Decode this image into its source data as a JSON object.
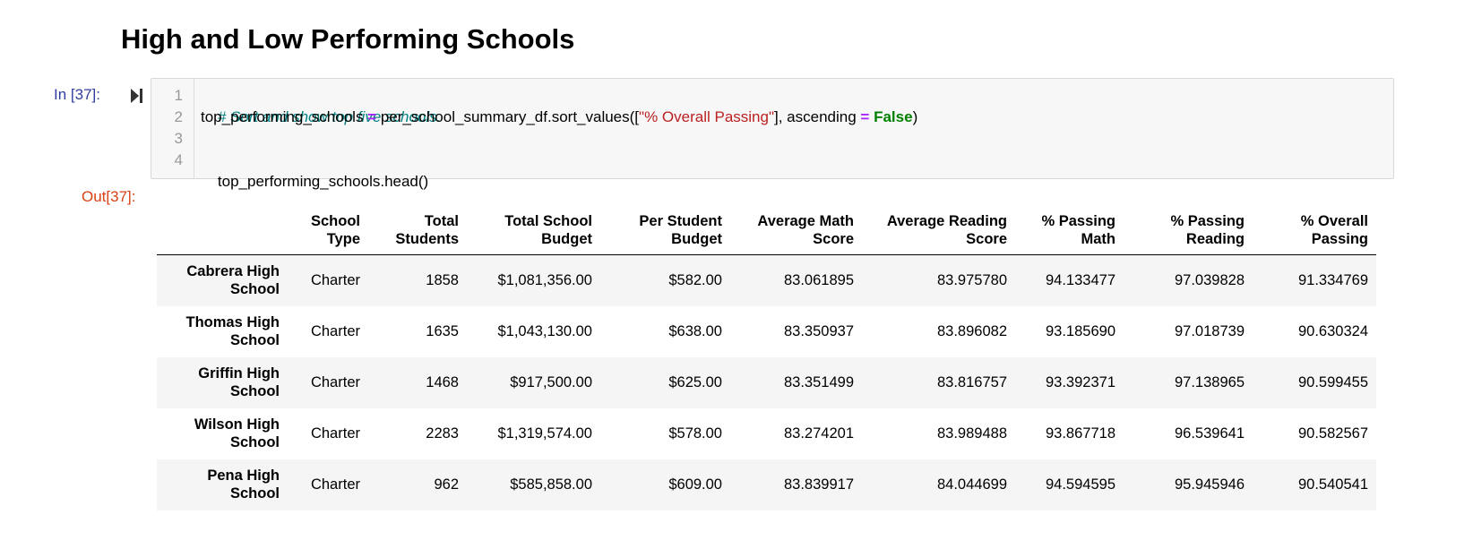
{
  "section_heading": "High and Low Performing Schools",
  "input_cell": {
    "prompt": "In [37]:",
    "line_numbers": [
      "1",
      "2",
      "3",
      "4"
    ],
    "code": {
      "comment": "# Sort and show top five schools.",
      "line2": {
        "var": "top_performing_schools ",
        "op": "=",
        "call_start": " per_school_summary_df.sort_values([",
        "string": "\"% Overall Passing\"",
        "mid": "], ascending ",
        "op2": "=",
        "space": " ",
        "keyword": "False",
        "end": ")"
      },
      "line4": "top_performing_schools.head()"
    }
  },
  "output_cell": {
    "prompt": "Out[37]:",
    "table": {
      "columns": [
        [
          "School",
          "Type"
        ],
        [
          "Total",
          "Students"
        ],
        [
          "Total School",
          "Budget"
        ],
        [
          "Per Student",
          "Budget"
        ],
        [
          "Average Math",
          "Score"
        ],
        [
          "Average Reading",
          "Score"
        ],
        [
          "% Passing",
          "Math"
        ],
        [
          "% Passing",
          "Reading"
        ],
        [
          "% Overall",
          "Passing"
        ]
      ],
      "rows": [
        {
          "index": [
            "Cabrera High",
            "School"
          ],
          "cells": [
            "Charter",
            "1858",
            "$1,081,356.00",
            "$582.00",
            "83.061895",
            "83.975780",
            "94.133477",
            "97.039828",
            "91.334769"
          ]
        },
        {
          "index": [
            "Thomas High",
            "School"
          ],
          "cells": [
            "Charter",
            "1635",
            "$1,043,130.00",
            "$638.00",
            "83.350937",
            "83.896082",
            "93.185690",
            "97.018739",
            "90.630324"
          ]
        },
        {
          "index": [
            "Griffin High",
            "School"
          ],
          "cells": [
            "Charter",
            "1468",
            "$917,500.00",
            "$625.00",
            "83.351499",
            "83.816757",
            "93.392371",
            "97.138965",
            "90.599455"
          ]
        },
        {
          "index": [
            "Wilson High",
            "School"
          ],
          "cells": [
            "Charter",
            "2283",
            "$1,319,574.00",
            "$578.00",
            "83.274201",
            "83.989488",
            "93.867718",
            "96.539641",
            "90.582567"
          ]
        },
        {
          "index": [
            "Pena High",
            "School"
          ],
          "cells": [
            "Charter",
            "962",
            "$585,858.00",
            "$609.00",
            "83.839917",
            "84.044699",
            "94.594595",
            "95.945946",
            "90.540541"
          ]
        }
      ]
    }
  },
  "icons": {
    "run": "run-cell-icon"
  },
  "colors": {
    "in_prompt": "#303f9f",
    "out_prompt": "#d84315",
    "comment": "#008080",
    "string": "#ba2121",
    "keyword": "#008000",
    "operator": "#aa22ff"
  }
}
